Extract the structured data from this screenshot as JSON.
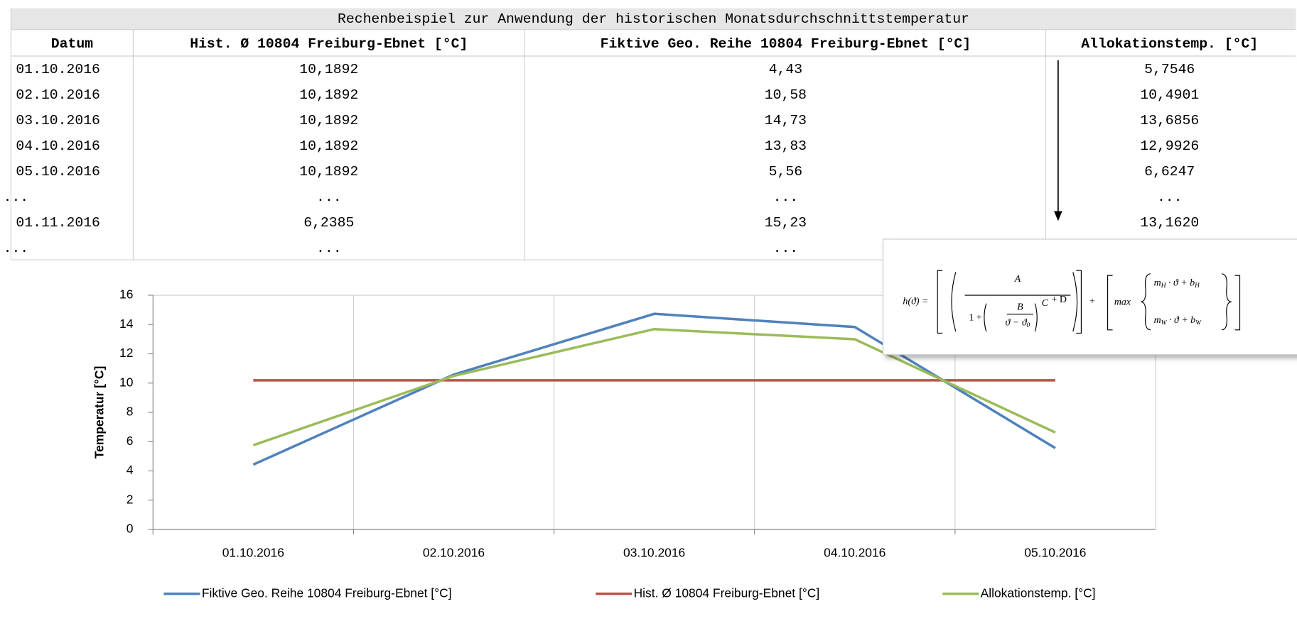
{
  "table": {
    "title": "Rechenbeispiel zur Anwendung der historischen Monatsdurchschnittstemperatur",
    "headers": [
      "Datum",
      "Hist. Ø 10804 Freiburg-Ebnet [°C]",
      "Fiktive Geo. Reihe 10804 Freiburg-Ebnet [°C]",
      "Allokationstemp. [°C]"
    ],
    "rows": [
      [
        "01.10.2016",
        "10,1892",
        "4,43",
        "5,7546"
      ],
      [
        "02.10.2016",
        "10,1892",
        "10,58",
        "10,4901"
      ],
      [
        "03.10.2016",
        "10,1892",
        "14,73",
        "13,6856"
      ],
      [
        "04.10.2016",
        "10,1892",
        "13,83",
        "12,9926"
      ],
      [
        "05.10.2016",
        "10,1892",
        "5,56",
        "6,6247"
      ],
      [
        "...",
        "...",
        "...",
        "..."
      ],
      [
        "01.11.2016",
        "6,2385",
        "15,23",
        "13,1620"
      ],
      [
        "...",
        "...",
        "..."
      ]
    ]
  },
  "formula": {
    "lhs": "h(ϑ) =",
    "numerator": "A",
    "denominator": "1 +",
    "inner_numerator": "B",
    "inner_denominator": [
      "ϑ − ϑ",
      "0"
    ],
    "exponent": "C",
    "plus_d": "+ D",
    "plus": "+",
    "max": "max",
    "upper": [
      "m",
      "H",
      " · ϑ + b",
      "H"
    ],
    "lower": [
      "m",
      "W",
      " · ϑ + b",
      "W"
    ]
  },
  "chart_data": {
    "type": "line",
    "y_label": "Temperatur [°C]",
    "categories": [
      "01.10.2016",
      "02.10.2016",
      "03.10.2016",
      "04.10.2016",
      "05.10.2016"
    ],
    "series": [
      {
        "name": "Fiktive Geo. Reihe 10804 Freiburg-Ebnet [°C]",
        "color": "#4f81bd",
        "values": [
          4.43,
          10.58,
          14.73,
          13.83,
          5.56
        ]
      },
      {
        "name": "Hist. Ø 10804 Freiburg-Ebnet [°C]",
        "color": "#c0504d",
        "values": [
          10.1892,
          10.1892,
          10.1892,
          10.1892,
          10.1892
        ]
      },
      {
        "name": "Allokationstemp. [°C]",
        "color": "#9bbb59",
        "values": [
          5.7546,
          10.4901,
          13.6856,
          12.9926,
          6.6247
        ]
      }
    ],
    "ylim": [
      0,
      16
    ],
    "yticks": [
      0,
      2,
      4,
      6,
      8,
      10,
      12,
      14,
      16
    ],
    "grid": true,
    "legend": "bottom"
  }
}
